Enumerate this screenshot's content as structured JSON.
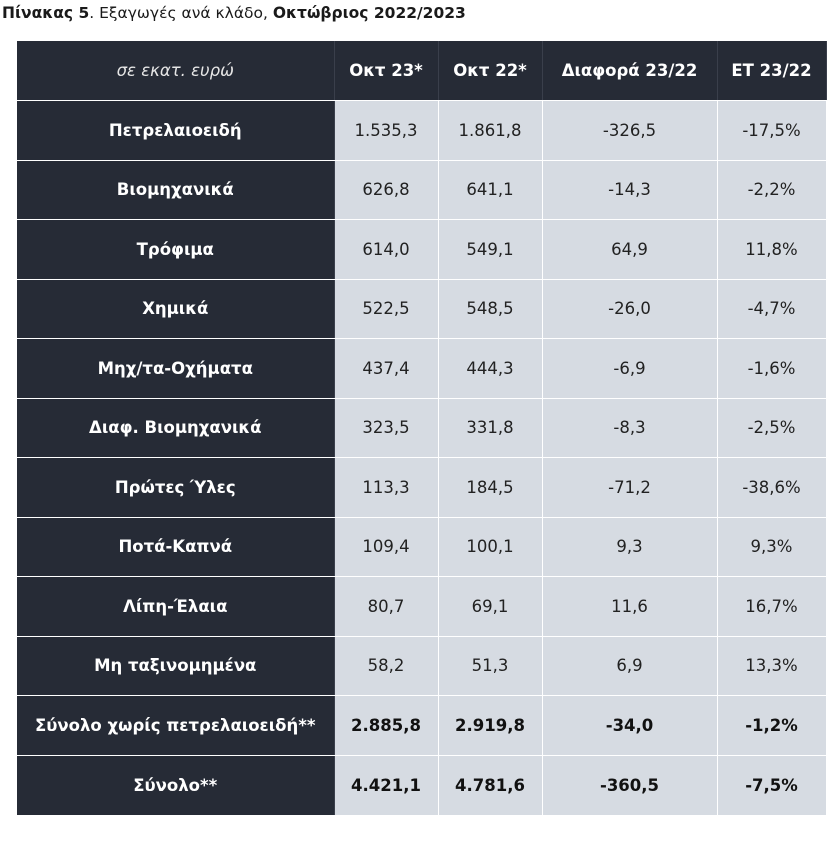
{
  "caption": {
    "prefix": "Πίνακας 5",
    "middle": ". Εξαγωγές ανά κλάδο, ",
    "suffix": "Οκτώβριος 2022/2023"
  },
  "header": {
    "label": "σε εκατ. ευρώ",
    "columns": [
      "Οκτ 23*",
      "Οκτ 22*",
      "Διαφορά 23/22",
      "ΕΤ 23/22"
    ]
  },
  "rows": [
    {
      "label": "Πετρελαιοειδή",
      "values": [
        "1.535,3",
        "1.861,8",
        "-326,5",
        "-17,5%"
      ]
    },
    {
      "label": "Βιομηχανικά",
      "values": [
        "626,8",
        "641,1",
        "-14,3",
        "-2,2%"
      ]
    },
    {
      "label": "Τρόφιμα",
      "values": [
        "614,0",
        "549,1",
        "64,9",
        "11,8%"
      ]
    },
    {
      "label": "Χημικά",
      "values": [
        "522,5",
        "548,5",
        "-26,0",
        "-4,7%"
      ]
    },
    {
      "label": "Μηχ/τα-Οχήματα",
      "values": [
        "437,4",
        "444,3",
        "-6,9",
        "-1,6%"
      ]
    },
    {
      "label": "Διαφ. Βιομηχανικά",
      "values": [
        "323,5",
        "331,8",
        "-8,3",
        "-2,5%"
      ]
    },
    {
      "label": "Πρώτες Ύλες",
      "values": [
        "113,3",
        "184,5",
        "-71,2",
        "-38,6%"
      ]
    },
    {
      "label": "Ποτά-Καπνά",
      "values": [
        "109,4",
        "100,1",
        "9,3",
        "9,3%"
      ]
    },
    {
      "label": "Λίπη-Έλαια",
      "values": [
        "80,7",
        "69,1",
        "11,6",
        "16,7%"
      ]
    },
    {
      "label": "Μη ταξινομημένα",
      "values": [
        "58,2",
        "51,3",
        "6,9",
        "13,3%"
      ]
    }
  ],
  "totals": [
    {
      "label": "Σύνολο χωρίς πετρελαιοειδή**",
      "values": [
        "2.885,8",
        "2.919,8",
        "-34,0",
        "-1,2%"
      ]
    },
    {
      "label": "Σύνολο**",
      "values": [
        "4.421,1",
        "4.781,6",
        "-360,5",
        "-7,5%"
      ]
    }
  ],
  "colors": {
    "dark_header": "#262b36",
    "light_cell": "#d6dbe2"
  }
}
